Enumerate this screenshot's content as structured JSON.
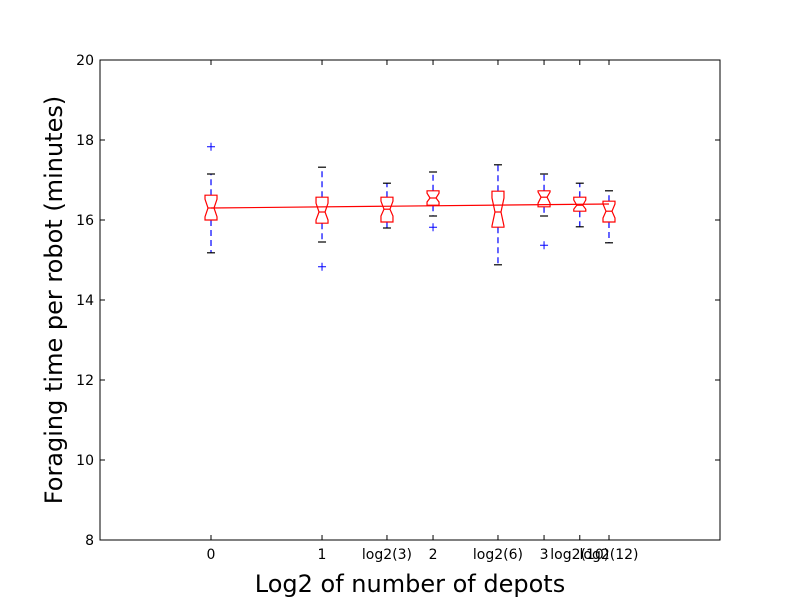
{
  "chart_data": {
    "type": "boxplot",
    "title": "",
    "xlabel": "Log2 of number of depots",
    "ylabel": "Foraging time per robot (minutes)",
    "xlim": [
      -1,
      4.585
    ],
    "ylim": [
      8,
      20
    ],
    "yticks": [
      8,
      10,
      12,
      14,
      16,
      18,
      20
    ],
    "xticks": [
      {
        "x": 0,
        "label": "0"
      },
      {
        "x": 1,
        "label": "1"
      },
      {
        "x": 1.585,
        "label": "log2(3)"
      },
      {
        "x": 2,
        "label": "2"
      },
      {
        "x": 2.585,
        "label": "log2(6)"
      },
      {
        "x": 3,
        "label": "3"
      },
      {
        "x": 3.3219,
        "label": "log2(10)"
      },
      {
        "x": 3.585,
        "label": "log2(12)"
      }
    ],
    "boxes": [
      {
        "x": 0,
        "whisker_low": 15.18,
        "q1": 16.0,
        "median": 16.3,
        "q3": 16.62,
        "whisker_high": 17.15,
        "notch_low": 16.08,
        "notch_high": 16.52,
        "outliers": [
          17.83
        ]
      },
      {
        "x": 1,
        "whisker_low": 15.45,
        "q1": 15.92,
        "median": 16.2,
        "q3": 16.57,
        "whisker_high": 17.32,
        "notch_low": 16.0,
        "notch_high": 16.42,
        "outliers": [
          14.83
        ]
      },
      {
        "x": 1.585,
        "whisker_low": 15.8,
        "q1": 15.95,
        "median": 16.27,
        "q3": 16.57,
        "whisker_high": 16.92,
        "notch_low": 16.1,
        "notch_high": 16.47,
        "outliers": []
      },
      {
        "x": 2,
        "whisker_low": 16.1,
        "q1": 16.37,
        "median": 16.55,
        "q3": 16.73,
        "whisker_high": 17.2,
        "notch_low": 16.45,
        "notch_high": 16.67,
        "outliers": [
          15.82
        ]
      },
      {
        "x": 2.585,
        "whisker_low": 14.88,
        "q1": 15.82,
        "median": 16.2,
        "q3": 16.72,
        "whisker_high": 17.38,
        "notch_low": 15.85,
        "notch_high": 16.55,
        "outliers": []
      },
      {
        "x": 3,
        "whisker_low": 16.1,
        "q1": 16.33,
        "median": 16.57,
        "q3": 16.73,
        "whisker_high": 17.15,
        "notch_low": 16.42,
        "notch_high": 16.7,
        "outliers": [
          15.37
        ]
      },
      {
        "x": 3.3219,
        "whisker_low": 15.83,
        "q1": 16.22,
        "median": 16.37,
        "q3": 16.57,
        "whisker_high": 16.92,
        "notch_low": 16.27,
        "notch_high": 16.5,
        "outliers": []
      },
      {
        "x": 3.585,
        "whisker_low": 15.43,
        "q1": 15.95,
        "median": 16.22,
        "q3": 16.47,
        "whisker_high": 16.73,
        "notch_low": 16.05,
        "notch_high": 16.4,
        "outliers": []
      }
    ],
    "trend_line": {
      "x": [
        0,
        3.585
      ],
      "y": [
        16.3,
        16.4
      ],
      "color": "#ff0000"
    },
    "colors": {
      "box": "#ff0000",
      "whisker": "#0000ff",
      "cap": "#000000",
      "outlier": "#0000ff",
      "median": "#ff0000"
    },
    "grid": false,
    "legend": "none"
  }
}
